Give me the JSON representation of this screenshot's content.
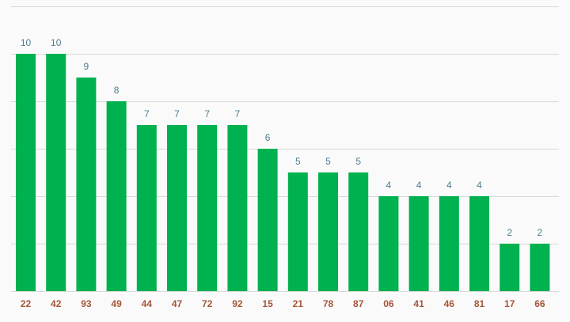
{
  "chart_data": {
    "type": "bar",
    "categories": [
      "22",
      "42",
      "93",
      "49",
      "44",
      "47",
      "72",
      "92",
      "15",
      "21",
      "78",
      "87",
      "06",
      "41",
      "46",
      "81",
      "17",
      "66"
    ],
    "values": [
      10,
      10,
      9,
      8,
      7,
      7,
      7,
      7,
      6,
      5,
      5,
      5,
      4,
      4,
      4,
      4,
      2,
      2
    ],
    "color": "#00b14f",
    "ylim": [
      0,
      12
    ],
    "yticks": [
      0,
      2,
      4,
      6,
      8,
      10,
      12
    ],
    "grid": true
  }
}
